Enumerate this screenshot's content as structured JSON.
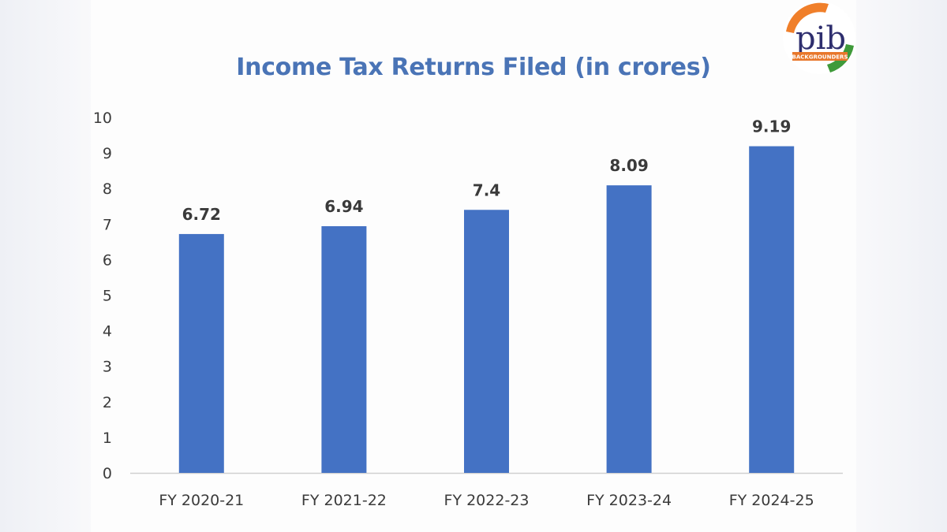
{
  "logo": {
    "text": "pib",
    "subtext": "BACKGROUNDERS"
  },
  "colors": {
    "bar": "#4472c4",
    "title": "#4a74b6"
  },
  "chart_data": {
    "type": "bar",
    "title": "Income Tax Returns Filed (in crores)",
    "categories": [
      "FY 2020-21",
      "FY 2021-22",
      "FY 2022-23",
      "FY 2023-24",
      "FY 2024-25"
    ],
    "values": [
      6.72,
      6.94,
      7.4,
      8.09,
      9.19
    ],
    "data_labels": [
      "6.72",
      "6.94",
      "7.4",
      "8.09",
      "9.19"
    ],
    "ylim": [
      0,
      10
    ],
    "yticks": [
      "0",
      "1",
      "2",
      "3",
      "4",
      "5",
      "6",
      "7",
      "8",
      "9",
      "10"
    ],
    "grid": false,
    "legend": "none",
    "xlabel": "",
    "ylabel": ""
  }
}
